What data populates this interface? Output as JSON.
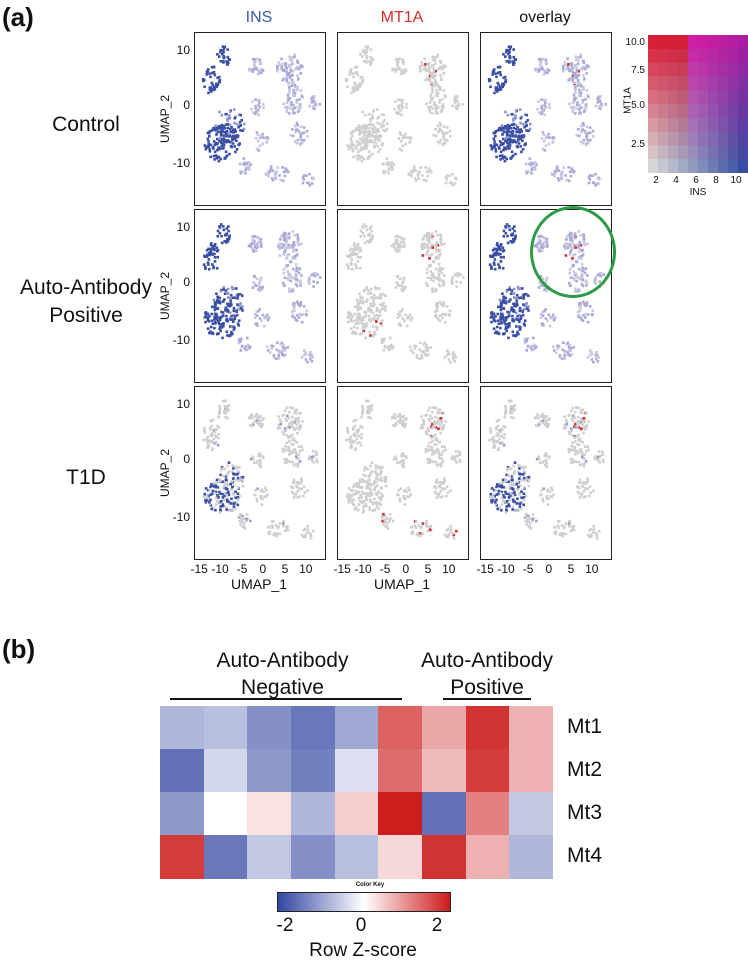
{
  "panel_a": {
    "letter": "(a)",
    "columns": [
      {
        "label": "INS",
        "color": "#3b5aa8"
      },
      {
        "label": "MT1A",
        "color": "#d42f2f"
      },
      {
        "label": "overlay",
        "color": "#111111"
      }
    ],
    "rows": [
      "Control",
      "Auto-Antibody\nPositive",
      "T1D"
    ],
    "row_lines": [
      [
        "Control"
      ],
      [
        "Auto-Antibody",
        "Positive"
      ],
      [
        "T1D"
      ]
    ],
    "ylabel": "UMAP_2",
    "xlabel": "UMAP_1",
    "yticks": [
      "10",
      "0",
      "-10"
    ],
    "xticks": [
      "-15",
      "-10",
      "-5",
      "0",
      "5",
      "10"
    ],
    "legend": {
      "ylabel": "MT1A",
      "xlabel": "INS",
      "yticks": [
        "10.0",
        "7.5",
        "5.0",
        "2.5"
      ],
      "xticks": [
        "2",
        "4",
        "6",
        "8",
        "10"
      ]
    },
    "highlight_color": "#2e9a48"
  },
  "panel_b": {
    "letter": "(b)",
    "group_negative": [
      "Auto-Antibody",
      "Negative"
    ],
    "group_positive": [
      "Auto-Antibody",
      "Positive"
    ],
    "color_key": {
      "title": "Color Key",
      "ticks": [
        "-2",
        "0",
        "2"
      ],
      "label": "Row Z-score"
    }
  },
  "chart_data": [
    {
      "type": "scatter",
      "description_source": "UMAP feature plots, 3 conditions x 3 columns",
      "xlabel": "UMAP_1",
      "ylabel": "UMAP_2",
      "xlim": [
        -16,
        13
      ],
      "ylim": [
        -15,
        13
      ],
      "features": [
        "INS",
        "MT1A",
        "overlay"
      ],
      "conditions": [
        "Control",
        "Auto-Antibody Positive",
        "T1D"
      ]
    },
    {
      "type": "heatmap",
      "rows": [
        "Mt1",
        "Mt2",
        "Mt3",
        "Mt4"
      ],
      "columns": 9,
      "column_groups": {
        "Auto-Antibody Negative": [
          0,
          1,
          2,
          3,
          4
        ],
        "Auto-Antibody Positive": [
          5,
          6,
          7,
          8
        ]
      },
      "scale": "Row Z-score",
      "range": [
        -2,
        2
      ],
      "values": [
        [
          -0.9,
          -0.8,
          -1.4,
          -1.7,
          -1.1,
          1.6,
          0.9,
          2.1,
          0.8
        ],
        [
          -1.8,
          -0.5,
          -1.3,
          -1.6,
          -0.4,
          1.5,
          0.7,
          2.0,
          0.8
        ],
        [
          -1.3,
          0.0,
          0.3,
          -0.9,
          0.5,
          2.3,
          -1.8,
          1.3,
          -0.7
        ],
        [
          2.0,
          -1.7,
          -0.7,
          -1.4,
          -0.8,
          0.4,
          2.1,
          0.8,
          -0.9
        ]
      ]
    }
  ]
}
